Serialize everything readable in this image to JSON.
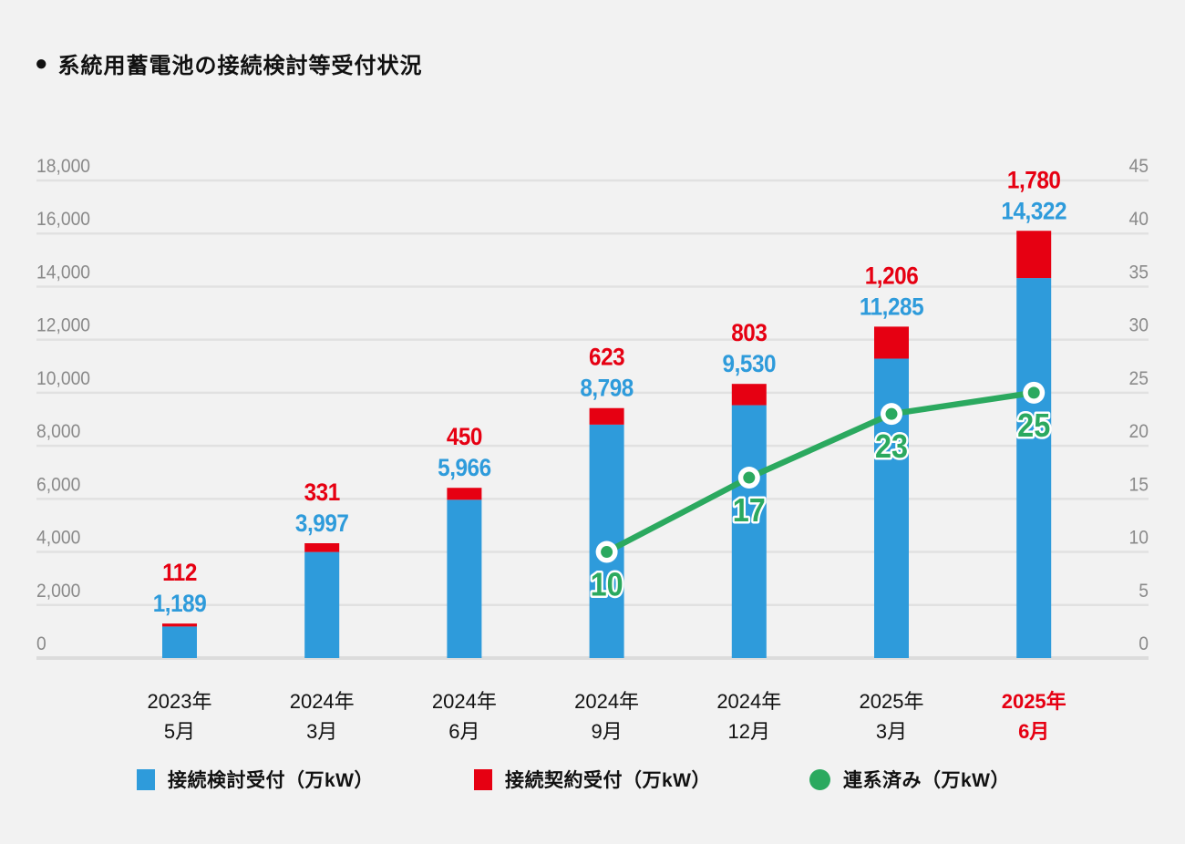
{
  "title": {
    "bullet": "●",
    "text": "系統用蓄電池の接続検討等受付状況"
  },
  "chart_data": {
    "type": "bar",
    "subtype": "stacked-bars-with-line-overlay",
    "categories": [
      {
        "line1": "2023年",
        "line2": "5月",
        "highlight": false
      },
      {
        "line1": "2024年",
        "line2": "3月",
        "highlight": false
      },
      {
        "line1": "2024年",
        "line2": "6月",
        "highlight": false
      },
      {
        "line1": "2024年",
        "line2": "9月",
        "highlight": false
      },
      {
        "line1": "2024年",
        "line2": "12月",
        "highlight": false
      },
      {
        "line1": "2025年",
        "line2": "3月",
        "highlight": false
      },
      {
        "line1": "2025年",
        "line2": "6月",
        "highlight": true
      }
    ],
    "series": [
      {
        "name": "接続検討受付（万kW）",
        "type": "bar",
        "stack": "base",
        "axis": "left",
        "color": "#2E9BDB",
        "values": [
          1189,
          3997,
          5966,
          8798,
          9530,
          11285,
          14322
        ],
        "labels": [
          "1,189",
          "3,997",
          "5,966",
          "8,798",
          "9,530",
          "11,285",
          "14,322"
        ]
      },
      {
        "name": "接続契約受付（万kW）",
        "type": "bar",
        "stack": "top",
        "axis": "left",
        "color": "#E60012",
        "values": [
          112,
          331,
          450,
          623,
          803,
          1206,
          1780
        ],
        "labels": [
          "112",
          "331",
          "450",
          "623",
          "803",
          "1,206",
          "1,780"
        ]
      },
      {
        "name": "連系済み（万kW）",
        "type": "line",
        "axis": "right",
        "color": "#2BA95F",
        "values": [
          null,
          null,
          null,
          10,
          17,
          23,
          25
        ],
        "labels": [
          null,
          null,
          null,
          "10",
          "17",
          "23",
          "25"
        ]
      }
    ],
    "left_axis": {
      "min": 0,
      "max": 18000,
      "step": 2000,
      "tick_labels": [
        "0",
        "2,000",
        "4,000",
        "6,000",
        "8,000",
        "10,000",
        "12,000",
        "14,000",
        "16,000",
        "18,000"
      ]
    },
    "right_axis": {
      "min": 0,
      "max": 45,
      "step": 5,
      "tick_labels": [
        "0",
        "5",
        "10",
        "15",
        "20",
        "25",
        "30",
        "35",
        "40",
        "45"
      ]
    },
    "grid": true,
    "legend_position": "bottom",
    "highlight_color": "#E60012",
    "colors": {
      "background": "#F2F2F2",
      "gridline": "#E1E1E1",
      "baseline": "#DCDCDC",
      "axis_text": "#8A8A8A",
      "category_text": "#111111"
    }
  },
  "legend": {
    "items": [
      {
        "label": "接続検討受付（万kW）",
        "shape": "square",
        "color": "#2E9BDB"
      },
      {
        "label": "接続契約受付（万kW）",
        "shape": "square",
        "color": "#E60012"
      },
      {
        "label": "連系済み（万kW）",
        "shape": "circle",
        "color": "#2BA95F"
      }
    ]
  }
}
